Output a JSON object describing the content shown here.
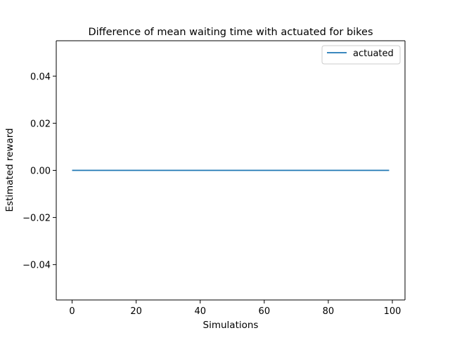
{
  "chart_data": {
    "type": "line",
    "title": "Difference of mean waiting time with actuated for bikes",
    "xlabel": "Simulations",
    "ylabel": "Estimated reward",
    "xlim": [
      -4.95,
      103.95
    ],
    "ylim": [
      -0.055,
      0.055
    ],
    "xticks": [
      0,
      20,
      40,
      60,
      80,
      100
    ],
    "xtick_labels": [
      "0",
      "20",
      "40",
      "60",
      "80",
      "100"
    ],
    "yticks": [
      -0.04,
      -0.02,
      0.0,
      0.02,
      0.04
    ],
    "ytick_labels": [
      "−0.04",
      "−0.02",
      "0.00",
      "0.02",
      "0.04"
    ],
    "grid": false,
    "legend_position": "top-right",
    "series": [
      {
        "name": "actuated",
        "color": "#1f77b4",
        "x": [
          0,
          99
        ],
        "y": [
          0.0,
          0.0
        ]
      }
    ]
  }
}
